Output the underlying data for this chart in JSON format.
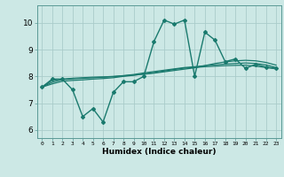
{
  "background_color": "#cce8e5",
  "grid_color": "#aaccca",
  "line_color": "#1a7a6e",
  "x_label": "Humidex (Indice chaleur)",
  "x_ticks": [
    0,
    1,
    2,
    3,
    4,
    5,
    6,
    7,
    8,
    9,
    10,
    11,
    12,
    13,
    14,
    15,
    16,
    17,
    18,
    19,
    20,
    21,
    22,
    23
  ],
  "ylim": [
    5.7,
    10.65
  ],
  "xlim": [
    -0.5,
    23.5
  ],
  "yticks": [
    6,
    7,
    8,
    9,
    10
  ],
  "series": [
    {
      "x": [
        0,
        1,
        2,
        3,
        4,
        5,
        6,
        7,
        8,
        9,
        10,
        11,
        12,
        13,
        14,
        15,
        16,
        17,
        18,
        19,
        20,
        21,
        22,
        23
      ],
      "y": [
        7.6,
        7.9,
        7.9,
        7.5,
        6.5,
        6.8,
        6.3,
        7.4,
        7.8,
        7.8,
        8.0,
        9.3,
        10.1,
        9.95,
        10.1,
        8.0,
        9.65,
        9.35,
        8.55,
        8.65,
        8.3,
        8.45,
        8.35,
        8.3
      ],
      "marker": "D",
      "markersize": 2.0,
      "linewidth": 1.0
    },
    {
      "x": [
        0,
        1,
        2,
        3,
        4,
        5,
        6,
        7,
        8,
        9,
        10,
        11,
        12,
        13,
        14,
        15,
        16,
        17,
        18,
        19,
        20,
        21,
        22,
        23
      ],
      "y": [
        7.6,
        7.85,
        7.9,
        7.93,
        7.95,
        7.97,
        7.98,
        8.0,
        8.02,
        8.05,
        8.08,
        8.12,
        8.17,
        8.22,
        8.27,
        8.32,
        8.4,
        8.48,
        8.54,
        8.58,
        8.6,
        8.58,
        8.52,
        8.42
      ],
      "marker": null,
      "linewidth": 0.9
    },
    {
      "x": [
        0,
        1,
        2,
        3,
        4,
        5,
        6,
        7,
        8,
        9,
        10,
        11,
        12,
        13,
        14,
        15,
        16,
        17,
        18,
        19,
        20,
        21,
        22,
        23
      ],
      "y": [
        7.6,
        7.78,
        7.88,
        7.91,
        7.93,
        7.95,
        7.97,
        7.99,
        8.03,
        8.07,
        8.13,
        8.18,
        8.23,
        8.28,
        8.33,
        8.36,
        8.4,
        8.43,
        8.46,
        8.48,
        8.5,
        8.48,
        8.43,
        8.33
      ],
      "marker": null,
      "linewidth": 0.9
    },
    {
      "x": [
        0,
        1,
        2,
        3,
        4,
        5,
        6,
        7,
        8,
        9,
        10,
        11,
        12,
        13,
        14,
        15,
        16,
        17,
        18,
        19,
        20,
        21,
        22,
        23
      ],
      "y": [
        7.6,
        7.72,
        7.82,
        7.85,
        7.87,
        7.9,
        7.92,
        7.95,
        8.0,
        8.04,
        8.09,
        8.14,
        8.2,
        8.26,
        8.31,
        8.33,
        8.36,
        8.38,
        8.4,
        8.41,
        8.42,
        8.38,
        8.33,
        8.28
      ],
      "marker": null,
      "linewidth": 0.9
    }
  ]
}
